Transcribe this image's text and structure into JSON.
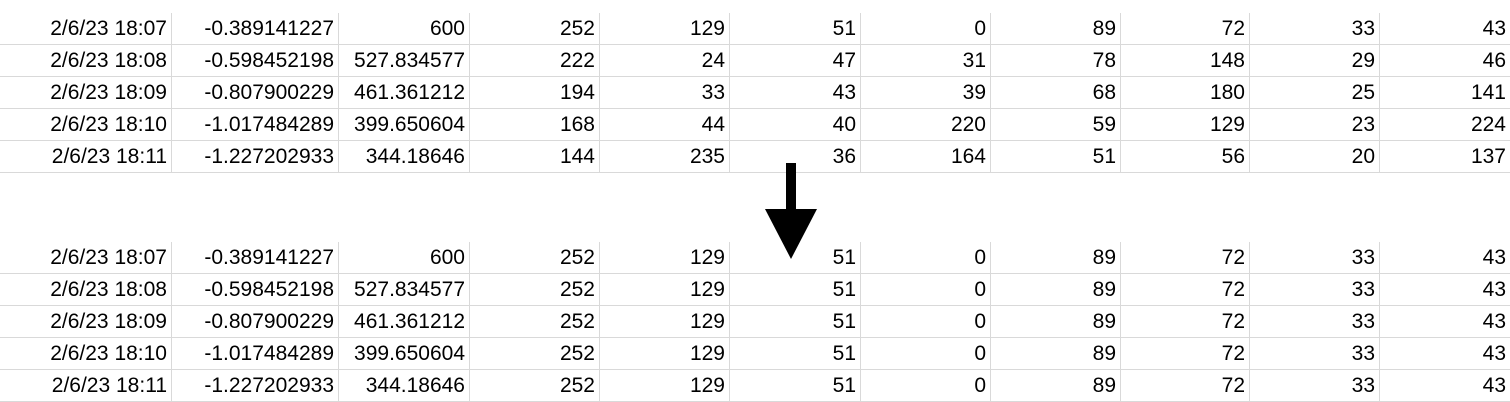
{
  "before": {
    "rows": [
      [
        "2/6/23 18:07",
        "-0.389141227",
        "600",
        "252",
        "129",
        "51",
        "0",
        "89",
        "72",
        "33",
        "43"
      ],
      [
        "2/6/23 18:08",
        "-0.598452198",
        "527.834577",
        "222",
        "24",
        "47",
        "31",
        "78",
        "148",
        "29",
        "46"
      ],
      [
        "2/6/23 18:09",
        "-0.807900229",
        "461.361212",
        "194",
        "33",
        "43",
        "39",
        "68",
        "180",
        "25",
        "141"
      ],
      [
        "2/6/23 18:10",
        "-1.017484289",
        "399.650604",
        "168",
        "44",
        "40",
        "220",
        "59",
        "129",
        "23",
        "224"
      ],
      [
        "2/6/23 18:11",
        "-1.227202933",
        "344.18646",
        "144",
        "235",
        "36",
        "164",
        "51",
        "56",
        "20",
        "137"
      ]
    ]
  },
  "after": {
    "rows": [
      [
        "2/6/23 18:07",
        "-0.389141227",
        "600",
        "252",
        "129",
        "51",
        "0",
        "89",
        "72",
        "33",
        "43"
      ],
      [
        "2/6/23 18:08",
        "-0.598452198",
        "527.834577",
        "252",
        "129",
        "51",
        "0",
        "89",
        "72",
        "33",
        "43"
      ],
      [
        "2/6/23 18:09",
        "-0.807900229",
        "461.361212",
        "252",
        "129",
        "51",
        "0",
        "89",
        "72",
        "33",
        "43"
      ],
      [
        "2/6/23 18:10",
        "-1.017484289",
        "399.650604",
        "252",
        "129",
        "51",
        "0",
        "89",
        "72",
        "33",
        "43"
      ],
      [
        "2/6/23 18:11",
        "-1.227202933",
        "344.18646",
        "252",
        "129",
        "51",
        "0",
        "89",
        "72",
        "33",
        "43"
      ]
    ]
  },
  "arrow": {
    "icon": "arrow-down-icon",
    "color": "#000000"
  },
  "grid_color": "#d9d9d9"
}
